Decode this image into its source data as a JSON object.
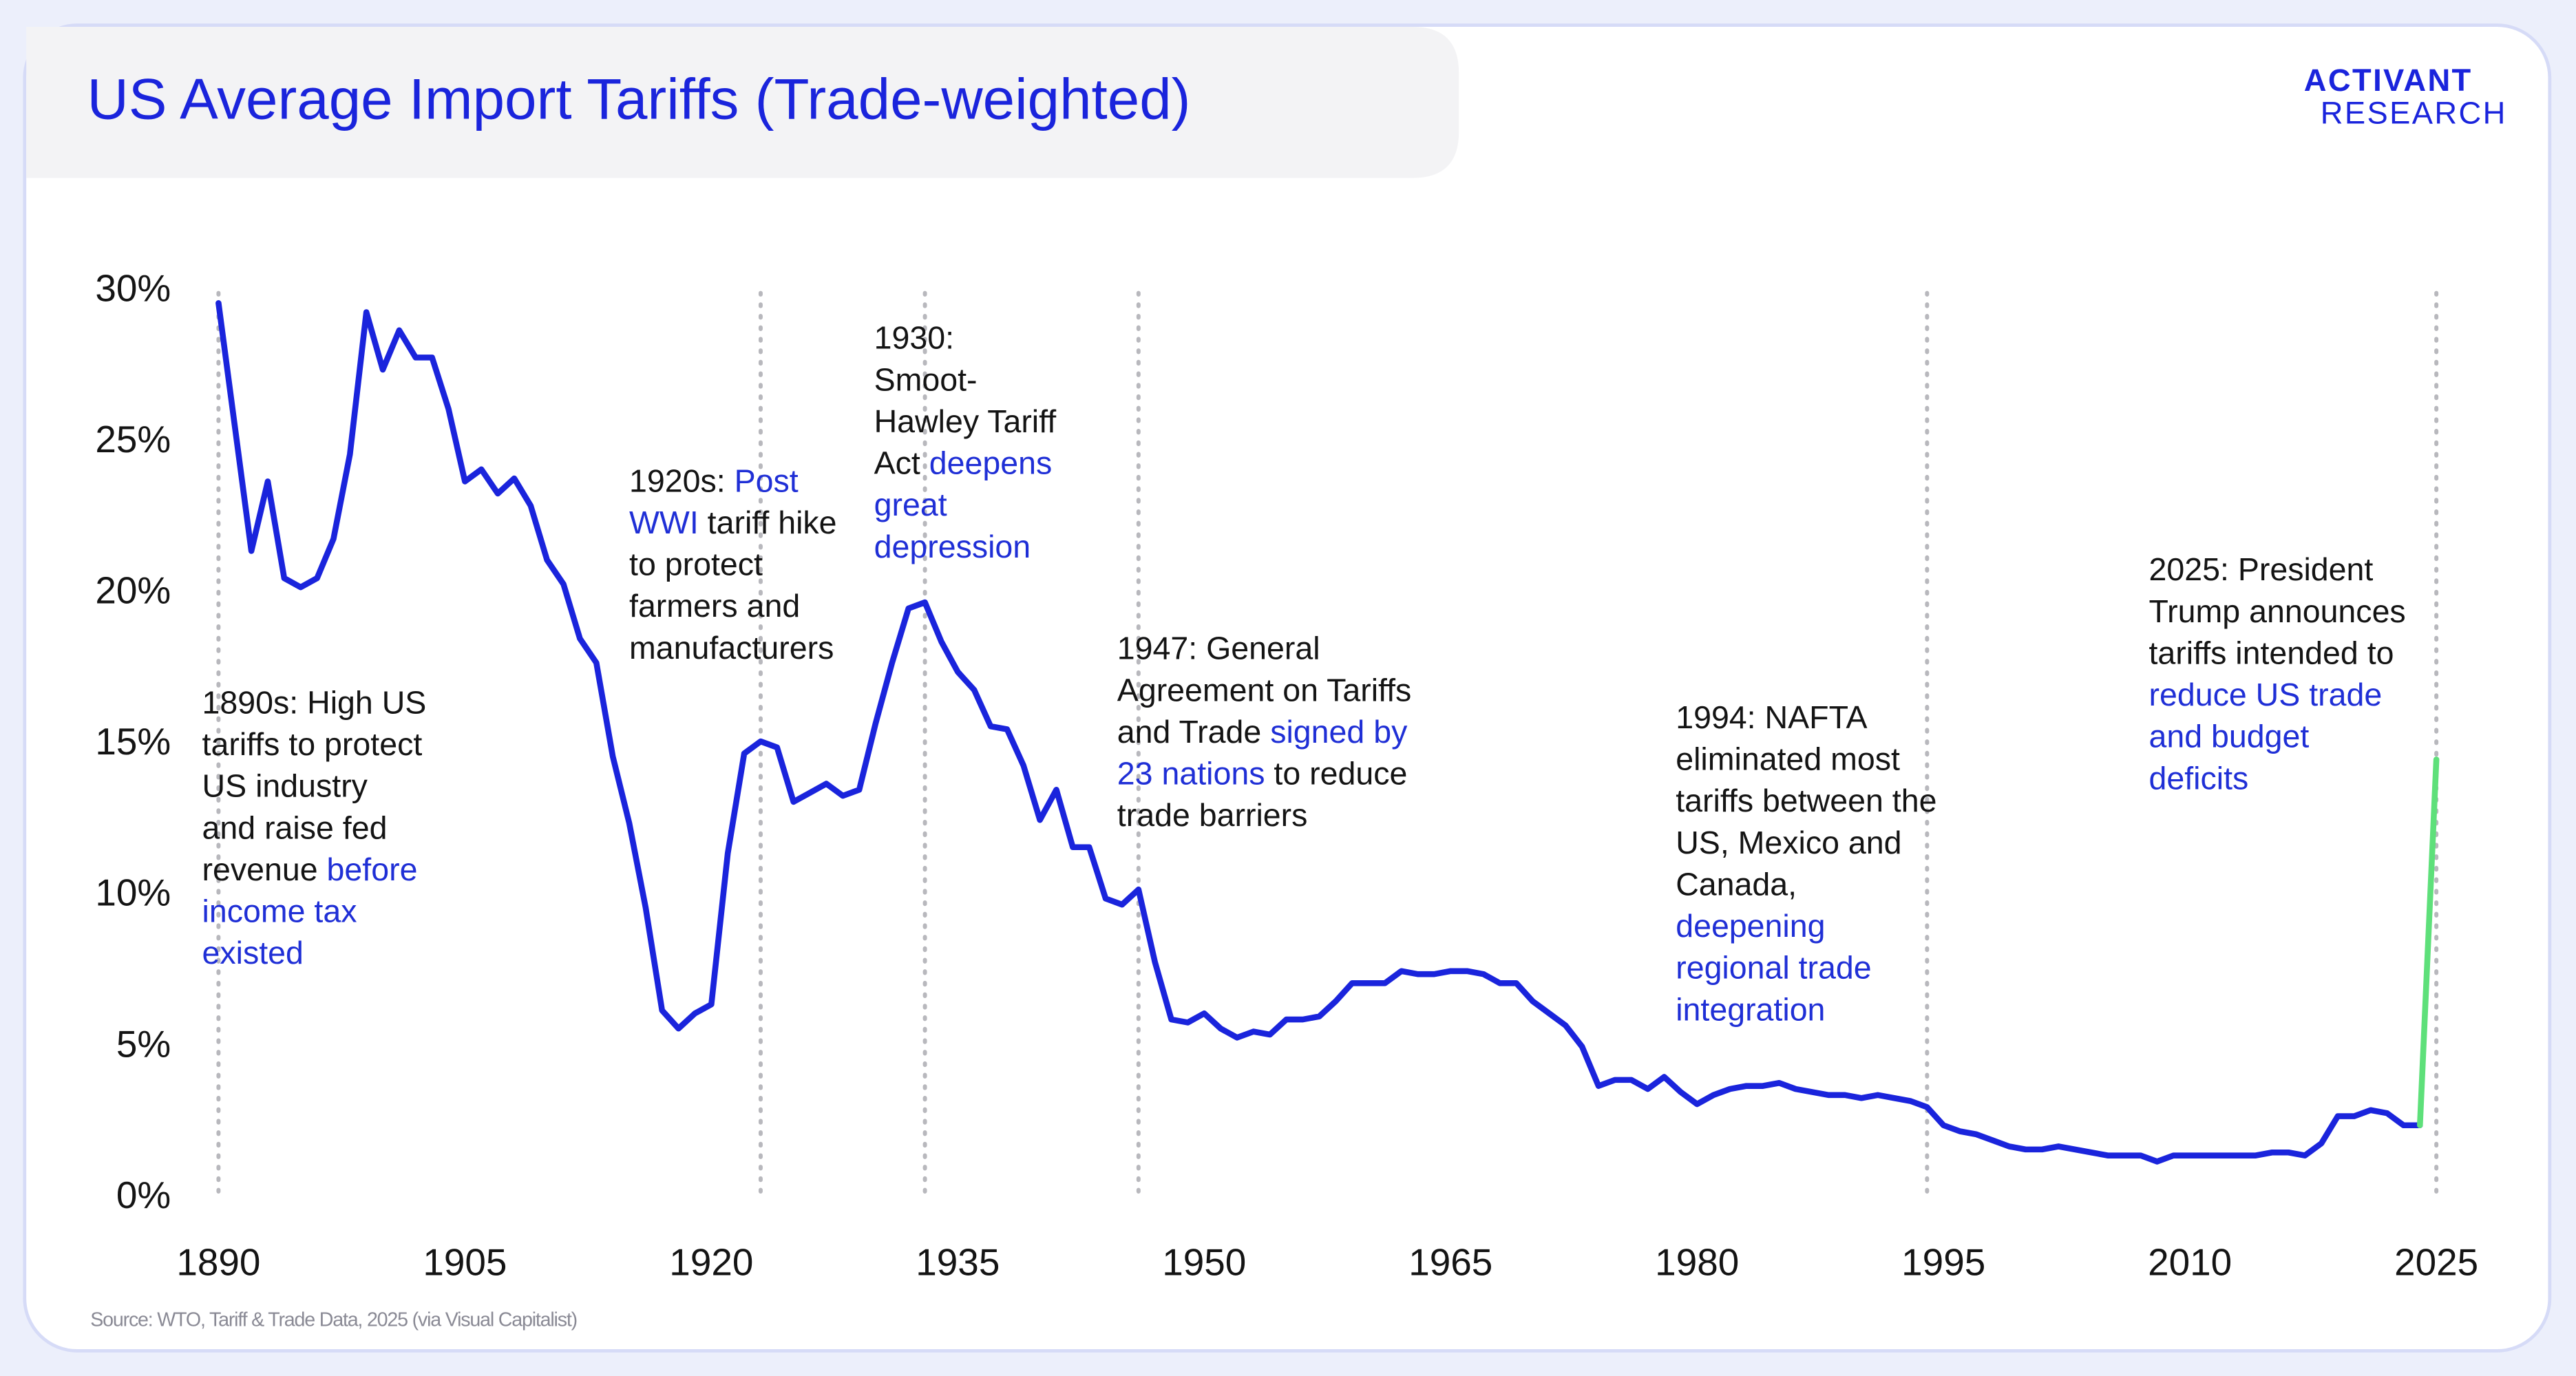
{
  "brand": {
    "line1": "ACTIVANT",
    "line2": "RESEARCH"
  },
  "chart_data": {
    "type": "line",
    "title": "US Average Import Tariffs (Trade-weighted)",
    "source": "Source: WTO, Tariff & Trade Data, 2025 (via Visual Capitalist)",
    "xlim": [
      1890,
      2025
    ],
    "xticks": [
      1890,
      1905,
      1920,
      1935,
      1950,
      1965,
      1980,
      1995,
      2010,
      2025
    ],
    "ylim": [
      0,
      30
    ],
    "yticks": [
      {
        "value": 0,
        "label": "0%"
      },
      {
        "value": 5,
        "label": "5%"
      },
      {
        "value": 10,
        "label": "10%"
      },
      {
        "value": 15,
        "label": "15%"
      },
      {
        "value": 20,
        "label": "20%"
      },
      {
        "value": 25,
        "label": "25%"
      },
      {
        "value": 30,
        "label": "30%"
      }
    ],
    "series": [
      {
        "color": "#1a24dc",
        "x": [
          1890,
          1891,
          1892,
          1893,
          1894,
          1895,
          1896,
          1897,
          1898,
          1899,
          1900,
          1901,
          1902,
          1903,
          1904,
          1905,
          1906,
          1907,
          1908,
          1909,
          1910,
          1911,
          1912,
          1913,
          1914,
          1915,
          1916,
          1917,
          1918,
          1919,
          1920,
          1921,
          1922,
          1923,
          1924,
          1925,
          1926,
          1927,
          1928,
          1929,
          1930,
          1931,
          1932,
          1933,
          1934,
          1935,
          1936,
          1937,
          1938,
          1939,
          1940,
          1941,
          1942,
          1943,
          1944,
          1945,
          1946,
          1947,
          1948,
          1949,
          1950,
          1951,
          1952,
          1953,
          1954,
          1955,
          1956,
          1957,
          1958,
          1959,
          1960,
          1961,
          1962,
          1963,
          1964,
          1965,
          1966,
          1967,
          1968,
          1969,
          1970,
          1971,
          1972,
          1973,
          1974,
          1975,
          1976,
          1977,
          1978,
          1979,
          1980,
          1981,
          1982,
          1983,
          1984,
          1985,
          1986,
          1987,
          1988,
          1989,
          1990,
          1991,
          1992,
          1993,
          1994,
          1995,
          1996,
          1997,
          1998,
          1999,
          2000,
          2001,
          2002,
          2003,
          2004,
          2005,
          2006,
          2007,
          2008,
          2009,
          2010,
          2011,
          2012,
          2013,
          2014,
          2015,
          2016,
          2017,
          2018,
          2019,
          2020,
          2021,
          2022,
          2023,
          2024
        ],
        "values": [
          29.5,
          25.4,
          21.3,
          23.6,
          20.4,
          20.1,
          20.4,
          21.7,
          24.5,
          29.2,
          27.3,
          28.6,
          27.7,
          27.7,
          26.0,
          23.6,
          24.0,
          23.2,
          23.7,
          22.8,
          21.0,
          20.2,
          18.4,
          17.6,
          14.5,
          12.3,
          9.5,
          6.1,
          5.5,
          6.0,
          6.3,
          11.3,
          14.6,
          15.0,
          14.8,
          13.0,
          13.3,
          13.6,
          13.2,
          13.4,
          15.6,
          17.6,
          19.4,
          19.6,
          18.3,
          17.3,
          16.7,
          15.5,
          15.4,
          14.2,
          12.4,
          13.4,
          11.5,
          11.5,
          9.8,
          9.6,
          10.1,
          7.7,
          5.8,
          5.7,
          6.0,
          5.5,
          5.2,
          5.4,
          5.3,
          5.8,
          5.8,
          5.9,
          6.4,
          7.0,
          7.0,
          7.0,
          7.4,
          7.3,
          7.3,
          7.4,
          7.4,
          7.3,
          7.0,
          7.0,
          6.4,
          6.0,
          5.6,
          4.9,
          3.6,
          3.8,
          3.8,
          3.5,
          3.9,
          3.4,
          3.0,
          3.3,
          3.5,
          3.6,
          3.6,
          3.7,
          3.5,
          3.4,
          3.3,
          3.3,
          3.2,
          3.3,
          3.2,
          3.1,
          2.9,
          2.3,
          2.1,
          2.0,
          1.8,
          1.6,
          1.5,
          1.5,
          1.6,
          1.5,
          1.4,
          1.3,
          1.3,
          1.3,
          1.1,
          1.3,
          1.3,
          1.3,
          1.3,
          1.3,
          1.3,
          1.4,
          1.4,
          1.3,
          1.7,
          2.6,
          2.6,
          2.8,
          2.7,
          2.3,
          2.3
        ]
      },
      {
        "color": "#5ee07a",
        "x": [
          2024,
          2025
        ],
        "values": [
          2.3,
          14.4
        ]
      }
    ],
    "annotations": [
      {
        "x": 1890,
        "lines": [
          [
            {
              "text": "1890s:",
              "color": "#141414"
            },
            {
              "text": " High US",
              "color": "#141414"
            }
          ],
          [
            {
              "text": "tariffs to protect",
              "color": "#141414"
            }
          ],
          [
            {
              "text": "US industry",
              "color": "#141414"
            }
          ],
          [
            {
              "text": "and raise fed",
              "color": "#141414"
            }
          ],
          [
            {
              "text": "revenue ",
              "color": "#141414"
            },
            {
              "text": "before",
              "color": "#1f2fd6"
            }
          ],
          [
            {
              "text": "income tax",
              "color": "#1f2fd6"
            }
          ],
          [
            {
              "text": "existed",
              "color": "#1f2fd6"
            }
          ]
        ]
      },
      {
        "x": 1923,
        "lines": [
          [
            {
              "text": "1920s:",
              "color": "#141414"
            },
            {
              "text": " Post",
              "color": "#1f2fd6"
            }
          ],
          [
            {
              "text": "WWI",
              "color": "#1f2fd6"
            },
            {
              "text": " tariff hike",
              "color": "#141414"
            }
          ],
          [
            {
              "text": "to protect",
              "color": "#141414"
            }
          ],
          [
            {
              "text": "farmers and",
              "color": "#141414"
            }
          ],
          [
            {
              "text": "manufacturers",
              "color": "#141414"
            }
          ]
        ]
      },
      {
        "x": 1933,
        "lines": [
          [
            {
              "text": "1930:",
              "color": "#141414"
            }
          ],
          [
            {
              "text": "Smoot-",
              "color": "#141414"
            }
          ],
          [
            {
              "text": "Hawley Tariff",
              "color": "#141414"
            }
          ],
          [
            {
              "text": "Act ",
              "color": "#141414"
            },
            {
              "text": "deepens",
              "color": "#1f2fd6"
            }
          ],
          [
            {
              "text": "great",
              "color": "#1f2fd6"
            }
          ],
          [
            {
              "text": "depression",
              "color": "#1f2fd6"
            }
          ]
        ]
      },
      {
        "x": 1946,
        "lines": [
          [
            {
              "text": "1947:",
              "color": "#141414"
            },
            {
              "text": " General",
              "color": "#141414"
            }
          ],
          [
            {
              "text": "Agreement on Tariffs",
              "color": "#141414"
            }
          ],
          [
            {
              "text": "and Trade ",
              "color": "#141414"
            },
            {
              "text": "signed by",
              "color": "#1f2fd6"
            }
          ],
          [
            {
              "text": "23 nations",
              "color": "#1f2fd6"
            },
            {
              "text": " to reduce",
              "color": "#141414"
            }
          ],
          [
            {
              "text": "trade barriers",
              "color": "#141414"
            }
          ]
        ]
      },
      {
        "x": 1994,
        "lines": [
          [
            {
              "text": "1994:",
              "color": "#141414"
            },
            {
              "text": " NAFTA",
              "color": "#141414"
            }
          ],
          [
            {
              "text": "eliminated most",
              "color": "#141414"
            }
          ],
          [
            {
              "text": "tariffs between the",
              "color": "#141414"
            }
          ],
          [
            {
              "text": "US, Mexico and",
              "color": "#141414"
            }
          ],
          [
            {
              "text": "Canada,",
              "color": "#141414"
            }
          ],
          [
            {
              "text": "deepening",
              "color": "#1f2fd6"
            }
          ],
          [
            {
              "text": "regional trade",
              "color": "#1f2fd6"
            }
          ],
          [
            {
              "text": "integration",
              "color": "#1f2fd6"
            }
          ]
        ]
      },
      {
        "x": 2025,
        "lines": [
          [
            {
              "text": "2025:",
              "color": "#141414"
            },
            {
              "text": " President",
              "color": "#141414"
            }
          ],
          [
            {
              "text": "Trump announces",
              "color": "#141414"
            }
          ],
          [
            {
              "text": "tariffs intended to",
              "color": "#141414"
            }
          ],
          [
            {
              "text": "reduce US trade",
              "color": "#1f2fd6"
            }
          ],
          [
            {
              "text": "and budget",
              "color": "#1f2fd6"
            }
          ],
          [
            {
              "text": "deficits",
              "color": "#1f2fd6"
            }
          ]
        ]
      }
    ]
  }
}
